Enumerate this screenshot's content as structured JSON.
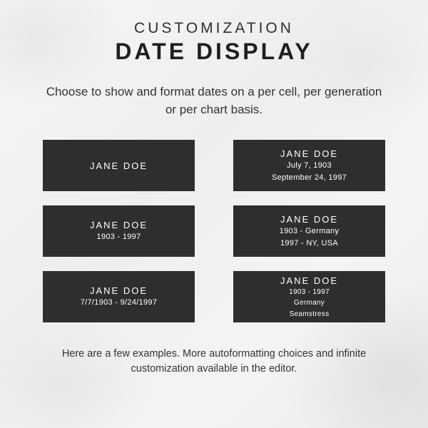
{
  "eyebrow": "CUSTOMIZATION",
  "title": "DATE DISPLAY",
  "subtitle": "Choose to show and format dates on a per cell, per generation or per chart basis.",
  "footer": "Here are a few examples. More autoformatting choices and infinite customization available in the editor.",
  "colors": {
    "card_bg": "#2e2e2e",
    "card_text": "#ffffff",
    "page_text": "#2e2e2e"
  },
  "cards": [
    {
      "name": "JANE DOE",
      "lines": []
    },
    {
      "name": "JANE DOE",
      "lines": [
        "July 7, 1903",
        "September 24, 1997"
      ]
    },
    {
      "name": "JANE DOE",
      "lines": [
        "1903 - 1997"
      ]
    },
    {
      "name": "JANE DOE",
      "lines": [
        "1903 - Germany",
        "1997 - NY, USA"
      ]
    },
    {
      "name": "JANE DOE",
      "lines": [
        "7/7/1903 - 9/24/1997"
      ]
    },
    {
      "name": "JANE DOE",
      "lines": [
        "1903 - 1997",
        "Germany",
        "Seamstress"
      ],
      "small": true
    }
  ]
}
